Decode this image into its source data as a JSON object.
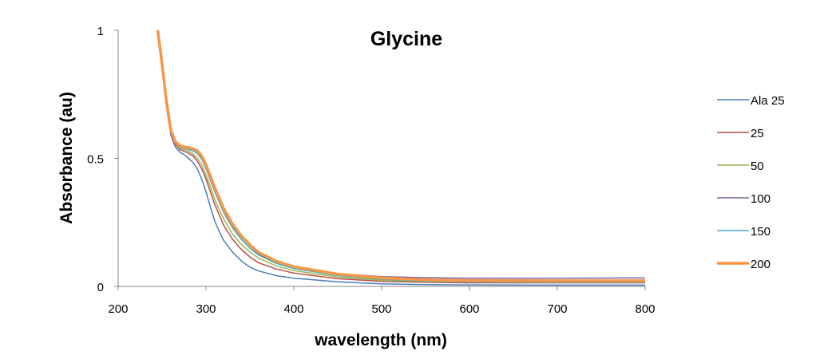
{
  "chart_data": {
    "type": "line",
    "title": "Glycine",
    "xlabel": "wavelength (nm)",
    "ylabel": "Absorbance (au)",
    "xlim": [
      200,
      800
    ],
    "ylim": [
      0,
      1
    ],
    "x_ticks": [
      "200",
      "300",
      "400",
      "500",
      "600",
      "700",
      "800"
    ],
    "y_ticks": [
      "0",
      "0.5",
      "1"
    ],
    "grid": false,
    "legend_position": "right",
    "series": [
      {
        "name": "Ala 25",
        "color": "#4a7ebb",
        "points": [
          [
            245,
            1.0
          ],
          [
            250,
            0.85
          ],
          [
            255,
            0.7
          ],
          [
            260,
            0.59
          ],
          [
            265,
            0.545
          ],
          [
            270,
            0.525
          ],
          [
            275,
            0.515
          ],
          [
            280,
            0.5
          ],
          [
            285,
            0.485
          ],
          [
            290,
            0.46
          ],
          [
            295,
            0.42
          ],
          [
            300,
            0.37
          ],
          [
            305,
            0.31
          ],
          [
            310,
            0.255
          ],
          [
            315,
            0.215
          ],
          [
            320,
            0.18
          ],
          [
            330,
            0.135
          ],
          [
            340,
            0.1
          ],
          [
            350,
            0.075
          ],
          [
            360,
            0.06
          ],
          [
            380,
            0.042
          ],
          [
            400,
            0.032
          ],
          [
            450,
            0.018
          ],
          [
            500,
            0.01
          ],
          [
            550,
            0.007
          ],
          [
            600,
            0.006
          ],
          [
            700,
            0.005
          ],
          [
            800,
            0.005
          ]
        ]
      },
      {
        "name": "25",
        "color": "#be4b48",
        "points": [
          [
            245,
            1.0
          ],
          [
            250,
            0.86
          ],
          [
            255,
            0.71
          ],
          [
            260,
            0.6
          ],
          [
            265,
            0.555
          ],
          [
            270,
            0.535
          ],
          [
            275,
            0.528
          ],
          [
            280,
            0.52
          ],
          [
            285,
            0.51
          ],
          [
            290,
            0.49
          ],
          [
            295,
            0.46
          ],
          [
            300,
            0.42
          ],
          [
            305,
            0.37
          ],
          [
            310,
            0.32
          ],
          [
            315,
            0.28
          ],
          [
            320,
            0.24
          ],
          [
            330,
            0.185
          ],
          [
            340,
            0.145
          ],
          [
            350,
            0.115
          ],
          [
            360,
            0.092
          ],
          [
            380,
            0.068
          ],
          [
            400,
            0.052
          ],
          [
            450,
            0.03
          ],
          [
            500,
            0.02
          ],
          [
            550,
            0.016
          ],
          [
            600,
            0.014
          ],
          [
            700,
            0.014
          ],
          [
            800,
            0.014
          ]
        ]
      },
      {
        "name": "50",
        "color": "#98b954",
        "points": [
          [
            245,
            1.0
          ],
          [
            250,
            0.865
          ],
          [
            255,
            0.715
          ],
          [
            260,
            0.605
          ],
          [
            265,
            0.56
          ],
          [
            270,
            0.54
          ],
          [
            275,
            0.535
          ],
          [
            280,
            0.528
          ],
          [
            285,
            0.518
          ],
          [
            290,
            0.502
          ],
          [
            295,
            0.475
          ],
          [
            300,
            0.435
          ],
          [
            305,
            0.39
          ],
          [
            310,
            0.34
          ],
          [
            315,
            0.3
          ],
          [
            320,
            0.265
          ],
          [
            330,
            0.205
          ],
          [
            340,
            0.165
          ],
          [
            350,
            0.135
          ],
          [
            360,
            0.11
          ],
          [
            380,
            0.08
          ],
          [
            400,
            0.062
          ],
          [
            450,
            0.036
          ],
          [
            500,
            0.024
          ],
          [
            550,
            0.019
          ],
          [
            600,
            0.017
          ],
          [
            700,
            0.016
          ],
          [
            800,
            0.016
          ]
        ]
      },
      {
        "name": "100",
        "color": "#7d60a0",
        "points": [
          [
            245,
            1.0
          ],
          [
            250,
            0.87
          ],
          [
            255,
            0.72
          ],
          [
            260,
            0.61
          ],
          [
            265,
            0.565
          ],
          [
            270,
            0.548
          ],
          [
            275,
            0.542
          ],
          [
            280,
            0.536
          ],
          [
            285,
            0.53
          ],
          [
            290,
            0.52
          ],
          [
            295,
            0.498
          ],
          [
            300,
            0.46
          ],
          [
            305,
            0.415
          ],
          [
            310,
            0.37
          ],
          [
            315,
            0.33
          ],
          [
            320,
            0.29
          ],
          [
            330,
            0.23
          ],
          [
            340,
            0.185
          ],
          [
            350,
            0.15
          ],
          [
            360,
            0.125
          ],
          [
            380,
            0.095
          ],
          [
            400,
            0.075
          ],
          [
            450,
            0.05
          ],
          [
            500,
            0.038
          ],
          [
            550,
            0.034
          ],
          [
            600,
            0.032
          ],
          [
            700,
            0.032
          ],
          [
            800,
            0.033
          ]
        ]
      },
      {
        "name": "150",
        "color": "#46aac5",
        "points": [
          [
            245,
            1.0
          ],
          [
            250,
            0.865
          ],
          [
            255,
            0.715
          ],
          [
            260,
            0.605
          ],
          [
            265,
            0.56
          ],
          [
            270,
            0.545
          ],
          [
            275,
            0.54
          ],
          [
            280,
            0.535
          ],
          [
            285,
            0.53
          ],
          [
            290,
            0.52
          ],
          [
            295,
            0.5
          ],
          [
            300,
            0.462
          ],
          [
            305,
            0.418
          ],
          [
            310,
            0.372
          ],
          [
            315,
            0.33
          ],
          [
            320,
            0.292
          ],
          [
            330,
            0.232
          ],
          [
            340,
            0.185
          ],
          [
            350,
            0.15
          ],
          [
            360,
            0.122
          ],
          [
            380,
            0.09
          ],
          [
            400,
            0.07
          ],
          [
            450,
            0.042
          ],
          [
            500,
            0.028
          ],
          [
            550,
            0.021
          ],
          [
            600,
            0.018
          ],
          [
            700,
            0.017
          ],
          [
            800,
            0.017
          ]
        ]
      },
      {
        "name": "200",
        "color": "#f79646",
        "points": [
          [
            245,
            1.0
          ],
          [
            250,
            0.868
          ],
          [
            255,
            0.72
          ],
          [
            260,
            0.61
          ],
          [
            265,
            0.565
          ],
          [
            270,
            0.55
          ],
          [
            275,
            0.545
          ],
          [
            280,
            0.542
          ],
          [
            285,
            0.538
          ],
          [
            290,
            0.53
          ],
          [
            295,
            0.51
          ],
          [
            300,
            0.475
          ],
          [
            305,
            0.43
          ],
          [
            310,
            0.385
          ],
          [
            315,
            0.345
          ],
          [
            320,
            0.305
          ],
          [
            330,
            0.245
          ],
          [
            340,
            0.198
          ],
          [
            350,
            0.162
          ],
          [
            360,
            0.133
          ],
          [
            380,
            0.098
          ],
          [
            400,
            0.077
          ],
          [
            450,
            0.048
          ],
          [
            500,
            0.033
          ],
          [
            550,
            0.026
          ],
          [
            600,
            0.023
          ],
          [
            700,
            0.022
          ],
          [
            800,
            0.022
          ]
        ]
      }
    ]
  }
}
